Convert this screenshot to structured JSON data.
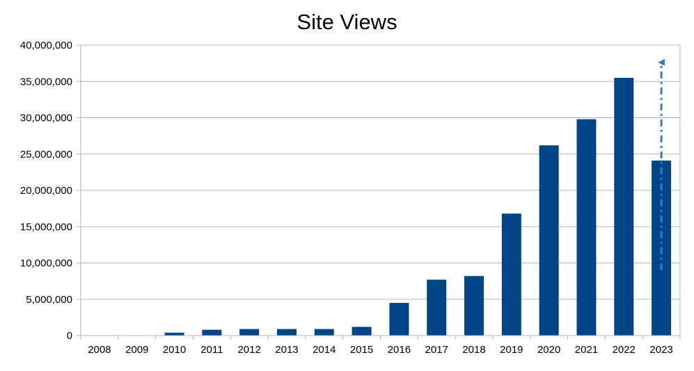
{
  "chart_data": {
    "type": "bar",
    "title": "Site Views",
    "xlabel": "",
    "ylabel": "",
    "categories": [
      "2008",
      "2009",
      "2010",
      "2011",
      "2012",
      "2013",
      "2014",
      "2015",
      "2016",
      "2017",
      "2018",
      "2019",
      "2020",
      "2021",
      "2022",
      "2023"
    ],
    "values": [
      0,
      0,
      400000,
      800000,
      900000,
      900000,
      900000,
      1200000,
      4500000,
      7700000,
      8200000,
      16800000,
      26200000,
      29800000,
      35500000,
      24100000
    ],
    "ylim": [
      0,
      40000000
    ],
    "yticks": [
      0,
      5000000,
      10000000,
      15000000,
      20000000,
      25000000,
      30000000,
      35000000,
      40000000
    ],
    "ytick_labels": [
      "0",
      "5,000,000",
      "10,000,000",
      "15,000,000",
      "20,000,000",
      "25,000,000",
      "30,000,000",
      "35,000,000",
      "40,000,000"
    ],
    "grid": true,
    "legend": "none",
    "bar_color": "#004586",
    "projection_arrow": {
      "category": "2023",
      "from": 9000000,
      "to": 38000000,
      "color": "#4472C4",
      "style": "dash-dot"
    }
  }
}
